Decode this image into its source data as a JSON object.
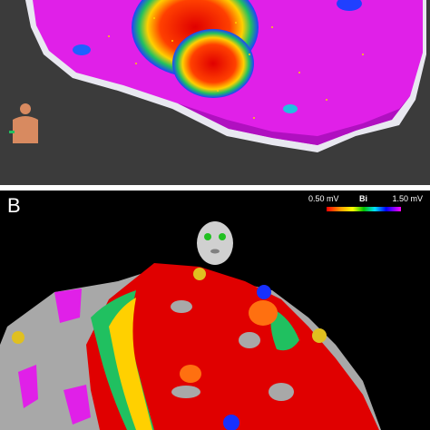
{
  "panel_a": {
    "label": "",
    "background": "#3b3b3b"
  },
  "panel_b": {
    "label": "B",
    "background": "#000000",
    "colorbar": {
      "min_label": "0.50 mV",
      "mode_label": "Bi",
      "max_label": "1.50 mV",
      "colors": [
        "#ff0000",
        "#ffa500",
        "#ffff00",
        "#00c000",
        "#00e0ff",
        "#0000ff",
        "#ff00ff"
      ]
    }
  },
  "icons": {
    "torso": "torso-orientation-icon",
    "face": "face-orientation-icon"
  },
  "colors": {
    "healthy_voltage": "#e020e8",
    "scar": "#e00000",
    "border_zone": "#20c060",
    "unmapped": "#a8a8a8"
  }
}
